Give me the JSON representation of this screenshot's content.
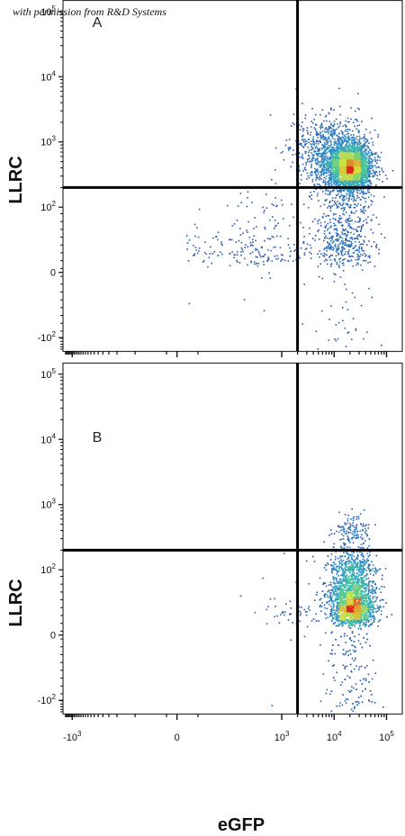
{
  "credit": "with permission from R&D Systems",
  "colors": {
    "gate": "#000000",
    "density_low": "#2d4fa8",
    "density_mid": "#2fb8c8",
    "density_high": "#d8e23a",
    "density_peak": "#e0261c"
  },
  "chart_data": [
    {
      "type": "scatter",
      "panel_label": "A",
      "xlabel": "",
      "ylabel": "LLRC",
      "scale": "biexponential",
      "y_tick_labels": [
        "10^5",
        "10^4",
        "10^3",
        "10^2",
        "0",
        "-10^2"
      ],
      "gate": {
        "x": 2000,
        "y": 200
      },
      "populations": [
        {
          "name": "",
          "x_center": 20000,
          "y_center": 420,
          "spread_x_decades": 0.42,
          "spread_y_decades": 0.35,
          "points": 2600
        },
        {
          "name": "",
          "x_center": 9000,
          "y_center": 700,
          "spread_x_decades": 0.7,
          "spread_y_decades": 0.55,
          "points": 900
        },
        {
          "name": "",
          "x_center": 15000,
          "y_center": 60,
          "spread_x_decades": 0.55,
          "spread_y_decades": 0.6,
          "points": 600
        },
        {
          "name": "",
          "x_center": 300,
          "y_center": 40,
          "spread_x_decades": 1.1,
          "spread_y_decades": 0.5,
          "points": 220
        }
      ]
    },
    {
      "type": "scatter",
      "panel_label": "B",
      "xlabel": "eGFP",
      "ylabel": "LLRC",
      "scale": "biexponential",
      "x_tick_labels": [
        "-10^3",
        "0",
        "10^3",
        "10^4",
        "10^5"
      ],
      "y_tick_labels": [
        "10^5",
        "10^4",
        "10^3",
        "10^2",
        "0",
        "-10^2"
      ],
      "gate": {
        "x": 2000,
        "y": 200
      },
      "populations": [
        {
          "name": "",
          "x_center": 22000,
          "y_center": 55,
          "spread_x_decades": 0.45,
          "spread_y_decades": 0.45,
          "points": 3200
        },
        {
          "name": "",
          "x_center": 22000,
          "y_center": 380,
          "spread_x_decades": 0.35,
          "spread_y_decades": 0.3,
          "points": 150
        },
        {
          "name": "",
          "x_center": 1500,
          "y_center": 40,
          "spread_x_decades": 0.7,
          "spread_y_decades": 0.4,
          "points": 60
        }
      ]
    }
  ]
}
